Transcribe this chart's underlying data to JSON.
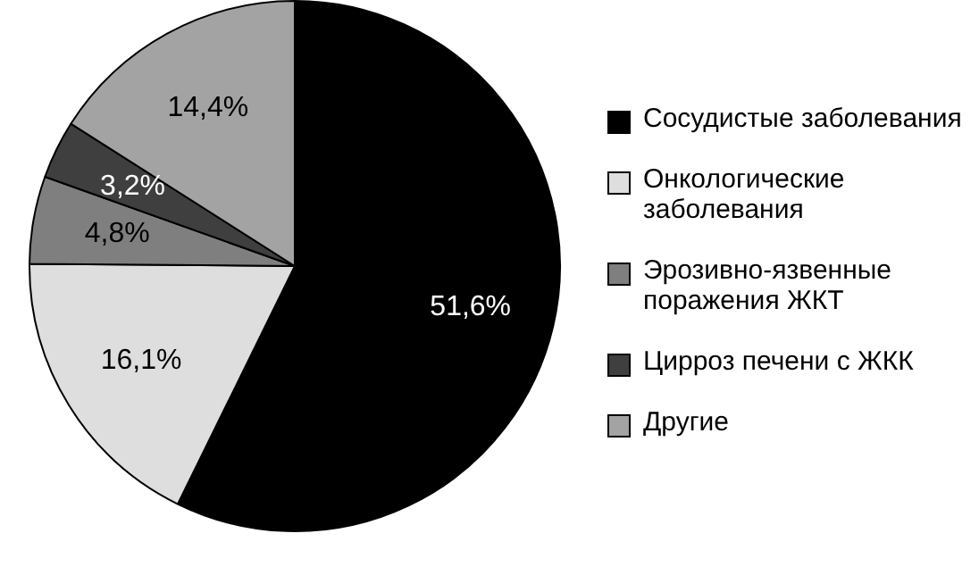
{
  "chart_data": {
    "type": "pie",
    "categories": [
      "Сосудистые заболевания",
      "Онкологические заболевания",
      "Эрозивно-язвенные поражения ЖКТ",
      "Цирроз печени с ЖКК",
      "Другие"
    ],
    "values": [
      51.6,
      16.1,
      4.8,
      3.2,
      14.4
    ],
    "colors": [
      "#000000",
      "#dedede",
      "#7f7f7f",
      "#3f3f3f",
      "#a3a3a3"
    ],
    "value_labels": [
      "51,6%",
      "16,1%",
      "4,8%",
      "3,2%",
      "14,4%"
    ],
    "legend": "right"
  }
}
